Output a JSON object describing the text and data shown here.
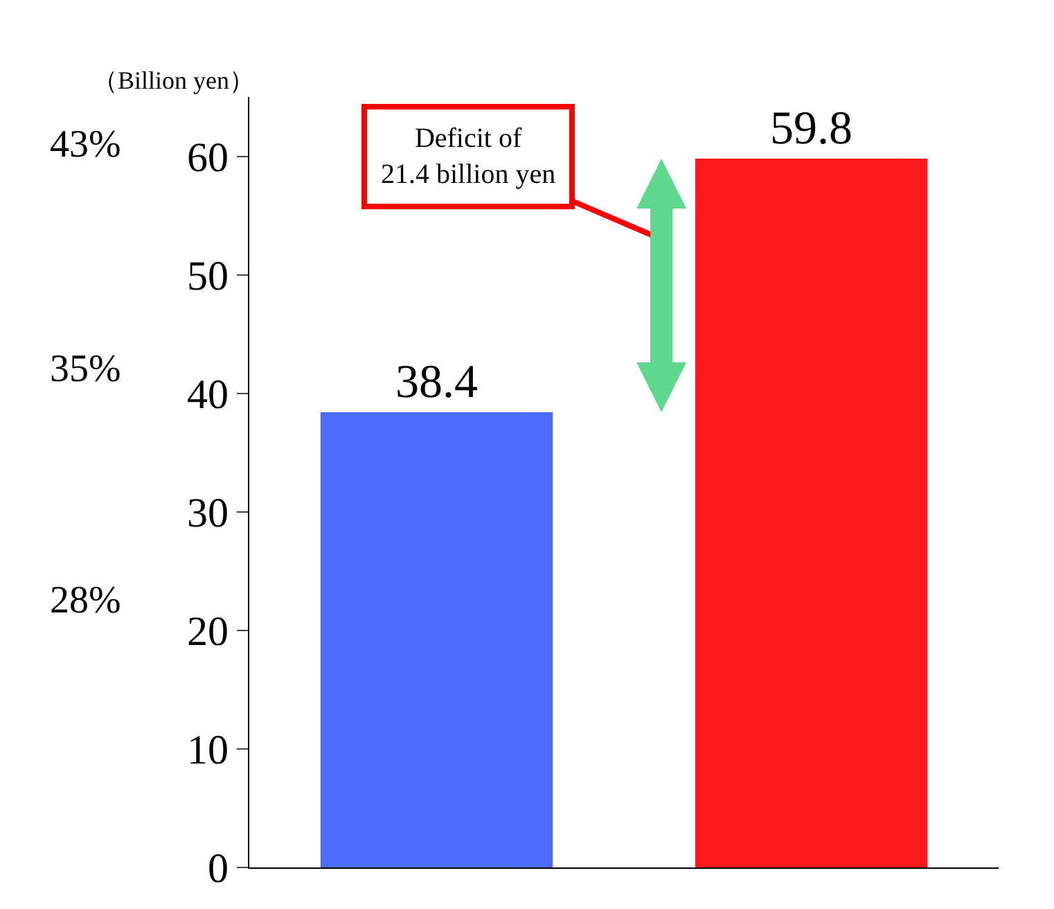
{
  "chart_data": {
    "type": "bar",
    "ylabel": "（Billion yen）",
    "categories": [
      null,
      null
    ],
    "values": [
      38.4,
      59.8
    ],
    "colors": [
      "#4a6cff",
      "#ff1a1a"
    ],
    "ylim": [
      0,
      65
    ],
    "yticks": [
      0,
      10,
      20,
      30,
      40,
      50,
      60
    ],
    "data_labels": true,
    "annotations": [
      "43%",
      "35%",
      "28%",
      "Deficit of\n21.4 billion yen"
    ]
  }
}
